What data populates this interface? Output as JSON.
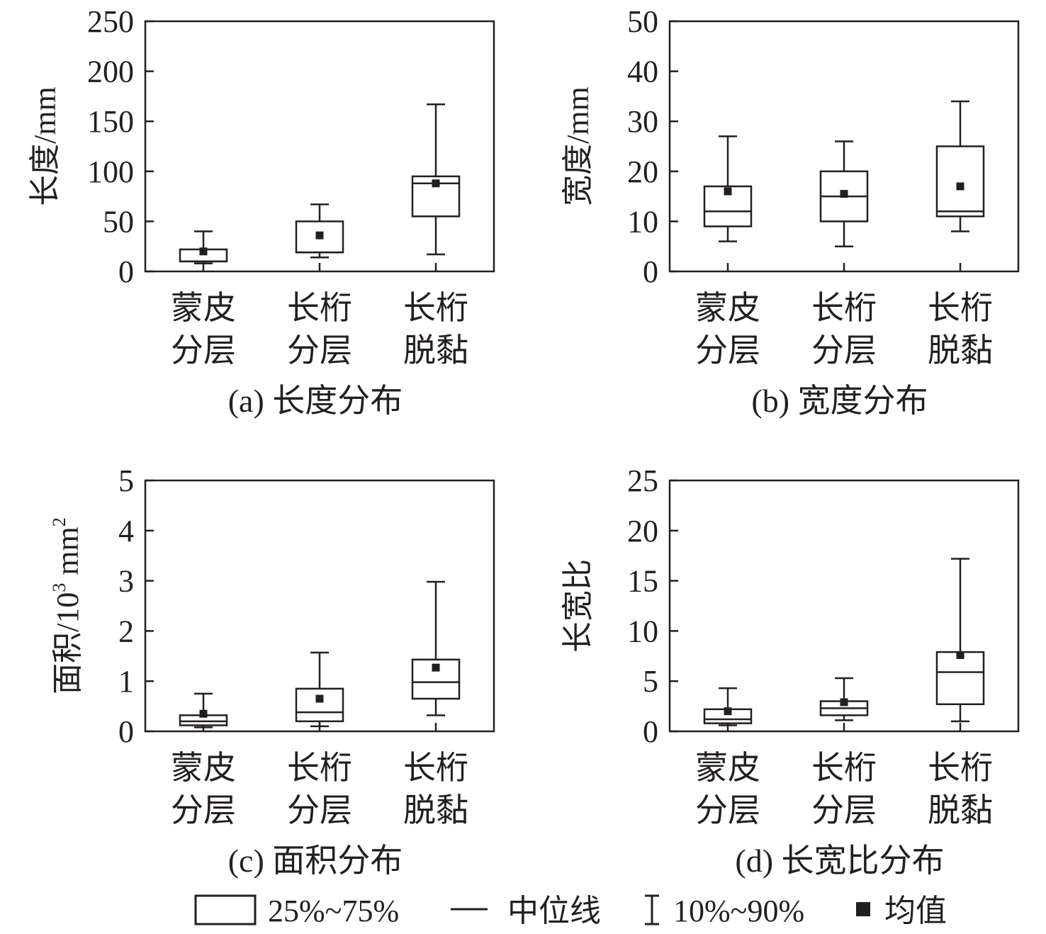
{
  "chart_data": [
    {
      "panel": "a",
      "type": "box",
      "caption": "(a) 长度分布",
      "ylabel": "长度/mm",
      "ylabel_sup": "",
      "ylabel_tail": "",
      "ylim": [
        0,
        250
      ],
      "yticks": [
        "0",
        "50",
        "100",
        "150",
        "200",
        "250"
      ],
      "categories": [
        [
          "蒙皮",
          "分层"
        ],
        [
          "长桁",
          "分层"
        ],
        [
          "长桁",
          "脱黏"
        ]
      ],
      "boxes": [
        {
          "p10": 8,
          "q1": 10,
          "median": 10,
          "q3": 22,
          "p90": 40,
          "mean": 20
        },
        {
          "p10": 14,
          "q1": 19,
          "median": 19,
          "q3": 50,
          "p90": 67,
          "mean": 36
        },
        {
          "p10": 17,
          "q1": 55,
          "median": 88,
          "q3": 95,
          "p90": 167,
          "mean": 88
        }
      ]
    },
    {
      "panel": "b",
      "type": "box",
      "caption": "(b) 宽度分布",
      "ylabel": "宽度/mm",
      "ylabel_sup": "",
      "ylabel_tail": "",
      "ylim": [
        0,
        50
      ],
      "yticks": [
        "0",
        "10",
        "20",
        "30",
        "40",
        "50"
      ],
      "categories": [
        [
          "蒙皮",
          "分层"
        ],
        [
          "长桁",
          "分层"
        ],
        [
          "长桁",
          "脱黏"
        ]
      ],
      "boxes": [
        {
          "p10": 6,
          "q1": 9,
          "median": 12,
          "q3": 17,
          "p90": 27,
          "mean": 16
        },
        {
          "p10": 5,
          "q1": 10,
          "median": 15,
          "q3": 20,
          "p90": 26,
          "mean": 15.5
        },
        {
          "p10": 8,
          "q1": 11,
          "median": 12,
          "q3": 25,
          "p90": 34,
          "mean": 17
        }
      ]
    },
    {
      "panel": "c",
      "type": "box",
      "caption": "(c) 面积分布",
      "ylabel": "面积/10",
      "ylabel_sup": "3",
      "ylabel_tail": " mm",
      "ylabel_sup2": "2",
      "ylim": [
        0,
        5
      ],
      "yticks": [
        "0",
        "1",
        "2",
        "3",
        "4",
        "5"
      ],
      "categories": [
        [
          "蒙皮",
          "分层"
        ],
        [
          "长桁",
          "分层"
        ],
        [
          "长桁",
          "脱黏"
        ]
      ],
      "boxes": [
        {
          "p10": 0.08,
          "q1": 0.12,
          "median": 0.2,
          "q3": 0.32,
          "p90": 0.75,
          "mean": 0.35
        },
        {
          "p10": 0.1,
          "q1": 0.2,
          "median": 0.38,
          "q3": 0.85,
          "p90": 1.57,
          "mean": 0.65
        },
        {
          "p10": 0.32,
          "q1": 0.65,
          "median": 0.98,
          "q3": 1.43,
          "p90": 2.98,
          "mean": 1.27
        }
      ]
    },
    {
      "panel": "d",
      "type": "box",
      "caption": "(d) 长宽比分布",
      "ylabel": "长宽比",
      "ylabel_sup": "",
      "ylabel_tail": "",
      "ylim": [
        0,
        25
      ],
      "yticks": [
        "0",
        "5",
        "10",
        "15",
        "20",
        "25"
      ],
      "categories": [
        [
          "蒙皮",
          "分层"
        ],
        [
          "长桁",
          "分层"
        ],
        [
          "长桁",
          "脱黏"
        ]
      ],
      "boxes": [
        {
          "p10": 0.6,
          "q1": 0.8,
          "median": 1.2,
          "q3": 2.2,
          "p90": 4.3,
          "mean": 2.0
        },
        {
          "p10": 1.1,
          "q1": 1.6,
          "median": 2.3,
          "q3": 3.0,
          "p90": 5.3,
          "mean": 2.9
        },
        {
          "p10": 1.0,
          "q1": 2.7,
          "median": 5.9,
          "q3": 7.9,
          "p90": 17.2,
          "mean": 7.6
        }
      ]
    }
  ],
  "legend": {
    "box_label": "25%~75%",
    "median_label": "中位线",
    "whisker_label": "10%~90%",
    "mean_label": "均值"
  },
  "colors": {
    "ink": "#231f20",
    "background": "#ffffff"
  }
}
